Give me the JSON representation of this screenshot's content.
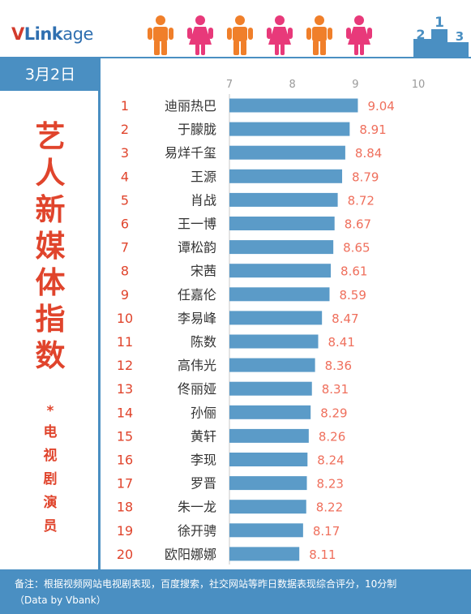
{
  "brand": {
    "v": "V",
    "link": "Link",
    "age": "age"
  },
  "date": "3月2日",
  "title_chars": [
    "艺",
    "人",
    "新",
    "媒",
    "体",
    "指",
    "数"
  ],
  "asterisk": "*",
  "subtitle_chars": [
    "电",
    "视",
    "剧",
    "演",
    "员"
  ],
  "podium_labels": [
    "2",
    "1",
    "3"
  ],
  "colors": {
    "accent": "#4a8fc2",
    "bar": "#5b9bc8",
    "highlight": "#e0442c",
    "value": "#ef6f5c",
    "male": "#f07f2a",
    "female": "#e8397a"
  },
  "people": [
    "male",
    "female",
    "male",
    "female",
    "male",
    "female"
  ],
  "footer": {
    "line1": "备注：根据视频网站电视剧表现，百度搜索，社交网站等昨日数据表现综合评分，10分制",
    "line2": "（Data by Vbank）"
  },
  "chart_data": {
    "type": "bar",
    "orientation": "horizontal",
    "xlim": [
      7,
      10
    ],
    "xticks": [
      "7",
      "8",
      "9",
      "10"
    ],
    "ranks": [
      "1",
      "2",
      "3",
      "4",
      "5",
      "6",
      "7",
      "8",
      "9",
      "10",
      "11",
      "12",
      "13",
      "14",
      "15",
      "16",
      "17",
      "18",
      "19",
      "20"
    ],
    "categories": [
      "迪丽热巴",
      "于朦胧",
      "易烊千玺",
      "王源",
      "肖战",
      "王一博",
      "谭松韵",
      "宋茜",
      "任嘉伦",
      "李易峰",
      "陈数",
      "高伟光",
      "佟丽娅",
      "孙俪",
      "黄轩",
      "李现",
      "罗晋",
      "朱一龙",
      "徐开骋",
      "欧阳娜娜"
    ],
    "values": [
      9.04,
      8.91,
      8.84,
      8.79,
      8.72,
      8.67,
      8.65,
      8.61,
      8.59,
      8.47,
      8.41,
      8.36,
      8.31,
      8.29,
      8.26,
      8.24,
      8.23,
      8.22,
      8.17,
      8.11
    ],
    "value_labels": [
      "9.04",
      "8.91",
      "8.84",
      "8.79",
      "8.72",
      "8.67",
      "8.65",
      "8.61",
      "8.59",
      "8.47",
      "8.41",
      "8.36",
      "8.31",
      "8.29",
      "8.26",
      "8.24",
      "8.23",
      "8.22",
      "8.17",
      "8.11"
    ]
  }
}
